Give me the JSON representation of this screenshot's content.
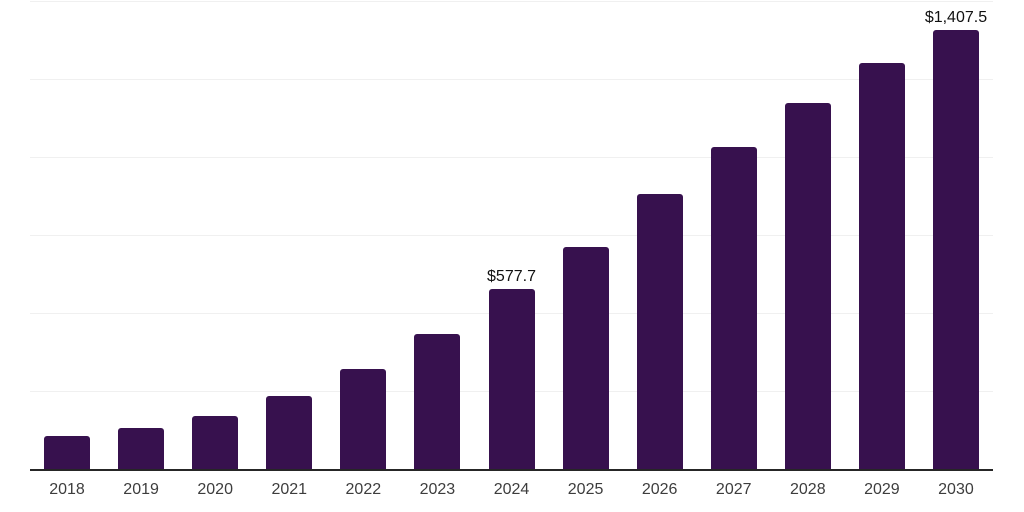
{
  "chart_data": {
    "type": "bar",
    "title": "",
    "xlabel": "",
    "ylabel": "",
    "categories": [
      "2018",
      "2019",
      "2020",
      "2021",
      "2022",
      "2023",
      "2024",
      "2025",
      "2026",
      "2027",
      "2028",
      "2029",
      "2030"
    ],
    "values": [
      105.7,
      131.2,
      170.1,
      234.9,
      320.4,
      432.5,
      577.7,
      712.3,
      880.2,
      1030.7,
      1173.6,
      1299.9,
      1407.5
    ],
    "value_format": "USD",
    "annotations": [
      {
        "index": 6,
        "label": "$577.7"
      },
      {
        "index": 12,
        "label": "$1,407.5"
      }
    ],
    "ylim": [
      0,
      1500
    ],
    "grid_step": 250,
    "grid": true,
    "legend": "none",
    "colors": {
      "bar": "#37114e",
      "axis_line": "#262626",
      "gridline": "#f0f0f0",
      "tick_label": "#3d3d3d",
      "annotation": "#111111"
    }
  }
}
